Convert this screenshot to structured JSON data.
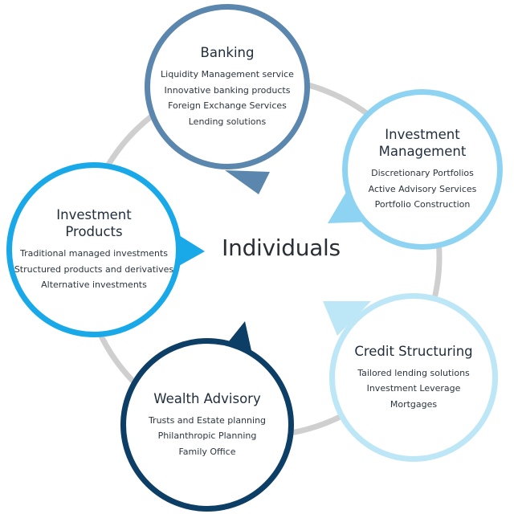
{
  "center_label": "Individuals",
  "colors": {
    "ring": "#cfcfcf",
    "banking": "#5b86ad",
    "investment_management": "#8fd3f2",
    "credit_structuring": "#bde6f6",
    "wealth_advisory": "#0d3e66",
    "investment_products": "#1aa9e8"
  },
  "nodes": {
    "banking": {
      "title": "Banking",
      "items": [
        "Liquidity Management service",
        "Innovative banking products",
        "Foreign Exchange Services",
        "Lending solutions"
      ]
    },
    "investment_management": {
      "title": "Investment\nManagement",
      "items": [
        "Discretionary Portfolios",
        "Active Advisory Services",
        "Portfolio Construction"
      ]
    },
    "credit_structuring": {
      "title": "Credit Structuring",
      "items": [
        "Tailored lending solutions",
        "Investment Leverage",
        "Mortgages"
      ]
    },
    "wealth_advisory": {
      "title": "Wealth Advisory",
      "items": [
        "Trusts and Estate planning",
        "Philanthropic Planning",
        "Family Office"
      ]
    },
    "investment_products": {
      "title": "Investment\nProducts",
      "items": [
        "Traditional managed investments",
        "Structured products and derivatives",
        "Alternative investments"
      ]
    }
  }
}
